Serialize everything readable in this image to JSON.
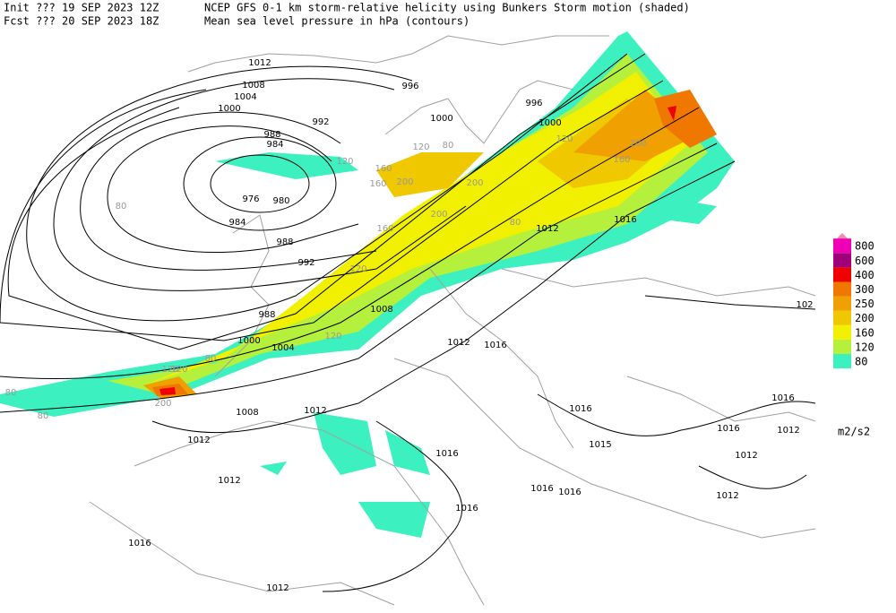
{
  "header": {
    "init": "Init  ??? 19 SEP 2023 12Z",
    "fcst": "Fcst ??? 20 SEP 2023 18Z",
    "title": "NCEP GFS 0-1 km storm-relative helicity using Bunkers Storm motion (shaded)",
    "subtitle": "Mean sea level pressure in hPa (contours)"
  },
  "legend": {
    "labels": [
      "80",
      "120",
      "160",
      "200",
      "250",
      "300",
      "400",
      "600",
      "800"
    ],
    "colors": [
      "#3cf0c0",
      "#b4f03c",
      "#f0f000",
      "#f0c800",
      "#f0a000",
      "#f07800",
      "#f00000",
      "#a0007a",
      "#f000b4"
    ],
    "unit": "m2/s2"
  },
  "contour_labels": [
    "1012",
    "1008",
    "1004",
    "1000",
    "996",
    "992",
    "988",
    "984",
    "976",
    "980",
    "984",
    "988",
    "992",
    "988",
    "1000",
    "1004",
    "1008",
    "1000",
    "996",
    "1000",
    "1012",
    "1016",
    "1012",
    "1016",
    "1008",
    "1012",
    "1012",
    "1012",
    "1016",
    "1016",
    "1015",
    "1016",
    "1016",
    "1016",
    "1012",
    "1012",
    "1016",
    "1016",
    "1012",
    "1016",
    "1012",
    "102"
  ],
  "shade_labels": [
    "80",
    "120",
    "160",
    "200",
    "200",
    "120",
    "160",
    "120",
    "200",
    "160",
    "120",
    "80",
    "80",
    "120",
    "200",
    "80",
    "120",
    "160",
    "200",
    "80",
    "120",
    "80"
  ]
}
